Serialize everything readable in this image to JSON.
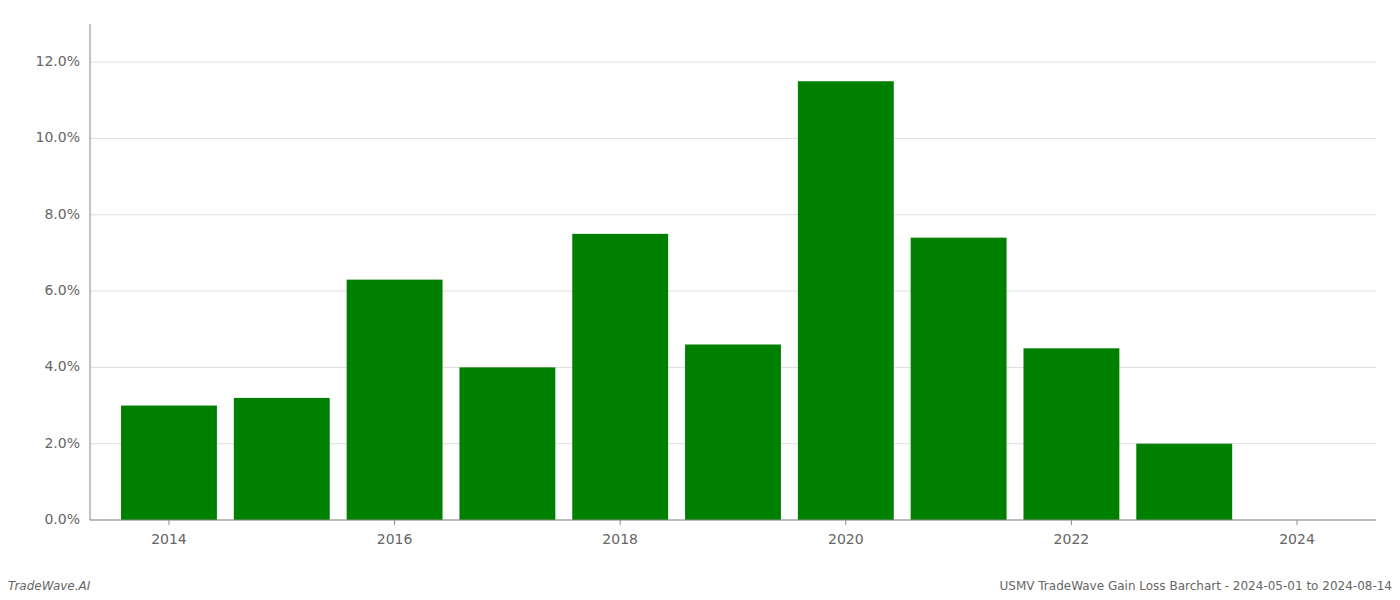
{
  "chart_data": {
    "type": "bar",
    "x": [
      2014,
      2015,
      2016,
      2017,
      2018,
      2019,
      2020,
      2021,
      2022,
      2023
    ],
    "values": [
      0.03,
      0.032,
      0.063,
      0.04,
      0.075,
      0.046,
      0.115,
      0.074,
      0.045,
      0.02
    ],
    "color": "#008000",
    "xlim": [
      2013.3,
      2024.7
    ],
    "xticks": [
      2014,
      2016,
      2018,
      2020,
      2022,
      2024
    ],
    "ylim": [
      0,
      0.13
    ],
    "yticks": [
      {
        "value": 0.0,
        "label": "0.0%"
      },
      {
        "value": 0.02,
        "label": "2.0%"
      },
      {
        "value": 0.04,
        "label": "4.0%"
      },
      {
        "value": 0.06,
        "label": "6.0%"
      },
      {
        "value": 0.08,
        "label": "8.0%"
      },
      {
        "value": 0.1,
        "label": "10.0%"
      },
      {
        "value": 0.12,
        "label": "12.0%"
      }
    ],
    "grid": true,
    "annotations": [
      "TradeWave.AI",
      "USMV TradeWave Gain Loss Barchart - 2024-05-01 to 2024-08-14"
    ]
  }
}
